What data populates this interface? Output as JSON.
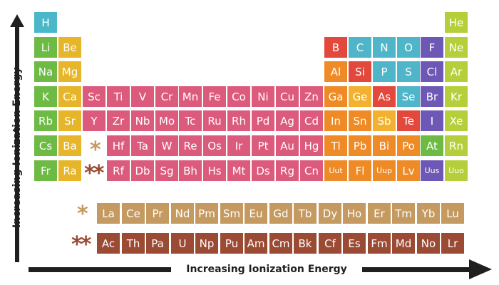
{
  "axes": {
    "vertical_label": "Increasing Ionization Energy",
    "horizontal_label": "Increasing Ionization Energy"
  },
  "markers": {
    "lanthanide": "*",
    "actinide": "**"
  },
  "colors": {
    "hydrogen": "#4bb8c9",
    "alkali": "#6dbb45",
    "alkaline_earth": "#e6b52a",
    "transition": "#dc5a7c",
    "post_transition": "#ef8b26",
    "metalloid": "#f2b22f",
    "nonmetal": "#4fb6c9",
    "halogen": "#6e58b5",
    "noble_gas": "#b4cf3a",
    "reactive_red": "#e2493c",
    "lanthanide": "#c49a61",
    "actinide": "#9b4a33",
    "lanthanide_marker": "#c49a61",
    "actinide_marker": "#9b4a33"
  },
  "elements": [
    {
      "symbol": "H",
      "row": 1,
      "col": 1,
      "cat": "hydrogen"
    },
    {
      "symbol": "He",
      "row": 1,
      "col": 18,
      "cat": "noble_gas"
    },
    {
      "symbol": "Li",
      "row": 2,
      "col": 1,
      "cat": "alkali"
    },
    {
      "symbol": "Be",
      "row": 2,
      "col": 2,
      "cat": "alkaline_earth"
    },
    {
      "symbol": "B",
      "row": 2,
      "col": 13,
      "cat": "reactive_red"
    },
    {
      "symbol": "C",
      "row": 2,
      "col": 14,
      "cat": "nonmetal"
    },
    {
      "symbol": "N",
      "row": 2,
      "col": 15,
      "cat": "nonmetal"
    },
    {
      "symbol": "O",
      "row": 2,
      "col": 16,
      "cat": "nonmetal"
    },
    {
      "symbol": "F",
      "row": 2,
      "col": 17,
      "cat": "halogen"
    },
    {
      "symbol": "Ne",
      "row": 2,
      "col": 18,
      "cat": "noble_gas"
    },
    {
      "symbol": "Na",
      "row": 3,
      "col": 1,
      "cat": "alkali"
    },
    {
      "symbol": "Mg",
      "row": 3,
      "col": 2,
      "cat": "alkaline_earth"
    },
    {
      "symbol": "Al",
      "row": 3,
      "col": 13,
      "cat": "post_transition"
    },
    {
      "symbol": "Si",
      "row": 3,
      "col": 14,
      "cat": "reactive_red"
    },
    {
      "symbol": "P",
      "row": 3,
      "col": 15,
      "cat": "nonmetal"
    },
    {
      "symbol": "S",
      "row": 3,
      "col": 16,
      "cat": "nonmetal"
    },
    {
      "symbol": "Cl",
      "row": 3,
      "col": 17,
      "cat": "halogen"
    },
    {
      "symbol": "Ar",
      "row": 3,
      "col": 18,
      "cat": "noble_gas"
    },
    {
      "symbol": "K",
      "row": 4,
      "col": 1,
      "cat": "alkali"
    },
    {
      "symbol": "Ca",
      "row": 4,
      "col": 2,
      "cat": "alkaline_earth"
    },
    {
      "symbol": "Sc",
      "row": 4,
      "col": 3,
      "cat": "transition"
    },
    {
      "symbol": "Ti",
      "row": 4,
      "col": 4,
      "cat": "transition"
    },
    {
      "symbol": "V",
      "row": 4,
      "col": 5,
      "cat": "transition"
    },
    {
      "symbol": "Cr",
      "row": 4,
      "col": 6,
      "cat": "transition"
    },
    {
      "symbol": "Mn",
      "row": 4,
      "col": 7,
      "cat": "transition"
    },
    {
      "symbol": "Fe",
      "row": 4,
      "col": 8,
      "cat": "transition"
    },
    {
      "symbol": "Co",
      "row": 4,
      "col": 9,
      "cat": "transition"
    },
    {
      "symbol": "Ni",
      "row": 4,
      "col": 10,
      "cat": "transition"
    },
    {
      "symbol": "Cu",
      "row": 4,
      "col": 11,
      "cat": "transition"
    },
    {
      "symbol": "Zn",
      "row": 4,
      "col": 12,
      "cat": "transition"
    },
    {
      "symbol": "Ga",
      "row": 4,
      "col": 13,
      "cat": "post_transition"
    },
    {
      "symbol": "Ge",
      "row": 4,
      "col": 14,
      "cat": "metalloid"
    },
    {
      "symbol": "As",
      "row": 4,
      "col": 15,
      "cat": "reactive_red"
    },
    {
      "symbol": "Se",
      "row": 4,
      "col": 16,
      "cat": "nonmetal"
    },
    {
      "symbol": "Br",
      "row": 4,
      "col": 17,
      "cat": "halogen"
    },
    {
      "symbol": "Kr",
      "row": 4,
      "col": 18,
      "cat": "noble_gas"
    },
    {
      "symbol": "Rb",
      "row": 5,
      "col": 1,
      "cat": "alkali"
    },
    {
      "symbol": "Sr",
      "row": 5,
      "col": 2,
      "cat": "alkaline_earth"
    },
    {
      "symbol": "Y",
      "row": 5,
      "col": 3,
      "cat": "transition"
    },
    {
      "symbol": "Zr",
      "row": 5,
      "col": 4,
      "cat": "transition"
    },
    {
      "symbol": "Nb",
      "row": 5,
      "col": 5,
      "cat": "transition"
    },
    {
      "symbol": "Mo",
      "row": 5,
      "col": 6,
      "cat": "transition"
    },
    {
      "symbol": "Tc",
      "row": 5,
      "col": 7,
      "cat": "transition"
    },
    {
      "symbol": "Ru",
      "row": 5,
      "col": 8,
      "cat": "transition"
    },
    {
      "symbol": "Rh",
      "row": 5,
      "col": 9,
      "cat": "transition"
    },
    {
      "symbol": "Pd",
      "row": 5,
      "col": 10,
      "cat": "transition"
    },
    {
      "symbol": "Ag",
      "row": 5,
      "col": 11,
      "cat": "transition"
    },
    {
      "symbol": "Cd",
      "row": 5,
      "col": 12,
      "cat": "transition"
    },
    {
      "symbol": "In",
      "row": 5,
      "col": 13,
      "cat": "post_transition"
    },
    {
      "symbol": "Sn",
      "row": 5,
      "col": 14,
      "cat": "post_transition"
    },
    {
      "symbol": "Sb",
      "row": 5,
      "col": 15,
      "cat": "metalloid"
    },
    {
      "symbol": "Te",
      "row": 5,
      "col": 16,
      "cat": "reactive_red"
    },
    {
      "symbol": "I",
      "row": 5,
      "col": 17,
      "cat": "halogen"
    },
    {
      "symbol": "Xe",
      "row": 5,
      "col": 18,
      "cat": "noble_gas"
    },
    {
      "symbol": "Cs",
      "row": 6,
      "col": 1,
      "cat": "alkali"
    },
    {
      "symbol": "Ba",
      "row": 6,
      "col": 2,
      "cat": "alkaline_earth"
    },
    {
      "symbol": "Hf",
      "row": 6,
      "col": 4,
      "cat": "transition"
    },
    {
      "symbol": "Ta",
      "row": 6,
      "col": 5,
      "cat": "transition"
    },
    {
      "symbol": "W",
      "row": 6,
      "col": 6,
      "cat": "transition"
    },
    {
      "symbol": "Re",
      "row": 6,
      "col": 7,
      "cat": "transition"
    },
    {
      "symbol": "Os",
      "row": 6,
      "col": 8,
      "cat": "transition"
    },
    {
      "symbol": "Ir",
      "row": 6,
      "col": 9,
      "cat": "transition"
    },
    {
      "symbol": "Pt",
      "row": 6,
      "col": 10,
      "cat": "transition"
    },
    {
      "symbol": "Au",
      "row": 6,
      "col": 11,
      "cat": "transition"
    },
    {
      "symbol": "Hg",
      "row": 6,
      "col": 12,
      "cat": "transition"
    },
    {
      "symbol": "Tl",
      "row": 6,
      "col": 13,
      "cat": "post_transition"
    },
    {
      "symbol": "Pb",
      "row": 6,
      "col": 14,
      "cat": "post_transition"
    },
    {
      "symbol": "Bi",
      "row": 6,
      "col": 15,
      "cat": "post_transition"
    },
    {
      "symbol": "Po",
      "row": 6,
      "col": 16,
      "cat": "post_transition"
    },
    {
      "symbol": "At",
      "row": 6,
      "col": 17,
      "cat": "alkali"
    },
    {
      "symbol": "Rn",
      "row": 6,
      "col": 18,
      "cat": "noble_gas"
    },
    {
      "symbol": "Fr",
      "row": 7,
      "col": 1,
      "cat": "alkali"
    },
    {
      "symbol": "Ra",
      "row": 7,
      "col": 2,
      "cat": "alkaline_earth"
    },
    {
      "symbol": "Rf",
      "row": 7,
      "col": 4,
      "cat": "transition"
    },
    {
      "symbol": "Db",
      "row": 7,
      "col": 5,
      "cat": "transition"
    },
    {
      "symbol": "Sg",
      "row": 7,
      "col": 6,
      "cat": "transition"
    },
    {
      "symbol": "Bh",
      "row": 7,
      "col": 7,
      "cat": "transition"
    },
    {
      "symbol": "Hs",
      "row": 7,
      "col": 8,
      "cat": "transition"
    },
    {
      "symbol": "Mt",
      "row": 7,
      "col": 9,
      "cat": "transition"
    },
    {
      "symbol": "Ds",
      "row": 7,
      "col": 10,
      "cat": "transition"
    },
    {
      "symbol": "Rg",
      "row": 7,
      "col": 11,
      "cat": "transition"
    },
    {
      "symbol": "Cn",
      "row": 7,
      "col": 12,
      "cat": "transition"
    },
    {
      "symbol": "Uut",
      "row": 7,
      "col": 13,
      "cat": "post_transition"
    },
    {
      "symbol": "Fl",
      "row": 7,
      "col": 14,
      "cat": "post_transition"
    },
    {
      "symbol": "Uup",
      "row": 7,
      "col": 15,
      "cat": "post_transition"
    },
    {
      "symbol": "Lv",
      "row": 7,
      "col": 16,
      "cat": "post_transition"
    },
    {
      "symbol": "Uus",
      "row": 7,
      "col": 17,
      "cat": "halogen"
    },
    {
      "symbol": "Uuo",
      "row": 7,
      "col": 18,
      "cat": "noble_gas"
    }
  ],
  "lanthanides": [
    "La",
    "Ce",
    "Pr",
    "Nd",
    "Pm",
    "Sm",
    "Eu",
    "Gd",
    "Tb",
    "Dy",
    "Ho",
    "Er",
    "Tm",
    "Yb",
    "Lu"
  ],
  "actinides": [
    "Ac",
    "Th",
    "Pa",
    "U",
    "Np",
    "Pu",
    "Am",
    "Cm",
    "Bk",
    "Cf",
    "Es",
    "Fm",
    "Md",
    "No",
    "Lr"
  ]
}
